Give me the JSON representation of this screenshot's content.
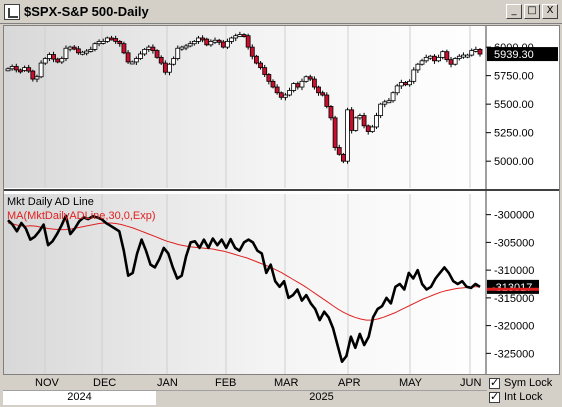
{
  "window": {
    "title": "$SPX-S&P 500-Daily",
    "controls": [
      "_",
      "□",
      "X"
    ]
  },
  "price_panel": {
    "last_price_label": "5939.30",
    "y_ticks": [
      "6000.00",
      "5750.00",
      "5500.00",
      "5250.00",
      "5000.00"
    ],
    "ymin": 4800,
    "ymax": 6150
  },
  "indicator_panel": {
    "title": "Mkt Daily AD Line",
    "ma_label": "MA(MktDailyADLine,30,0,Exp)",
    "last_value_label": "-313017",
    "y_ticks": [
      "-300000",
      "-305000",
      "-310000",
      "-315000",
      "-320000",
      "-325000"
    ],
    "ymin": -328000,
    "ymax": -297000
  },
  "x_axis": {
    "months": [
      "NOV",
      "DEC",
      "JAN",
      "FEB",
      "MAR",
      "APR",
      "MAY",
      "JUN"
    ],
    "years": [
      "2024",
      "2025"
    ]
  },
  "options": {
    "sym_lock": {
      "label": "Sym Lock",
      "checked": true
    },
    "int_lock": {
      "label": "Int Lock",
      "checked": true
    }
  },
  "colors": {
    "up_candle": "#ffffff",
    "down_candle": "#c8102e",
    "ad_line": "#000000",
    "ma_line": "#e02020",
    "price_label_bg": "#000000"
  },
  "chart_data": [
    {
      "type": "candlestick",
      "title": "$SPX-S&P 500-Daily",
      "ylim": [
        4800,
        6150
      ],
      "close_series": [
        5810,
        5830,
        5800,
        5795,
        5820,
        5790,
        5720,
        5740,
        5860,
        5900,
        5935,
        5895,
        5870,
        5900,
        5990,
        6000,
        5985,
        5950,
        5955,
        5965,
        5980,
        6030,
        6050,
        6050,
        6080,
        6075,
        6050,
        6030,
        5950,
        5870,
        5870,
        5900,
        5940,
        5980,
        6000,
        5970,
        5910,
        5860,
        5780,
        5850,
        5900,
        5990,
        6000,
        6010,
        6030,
        6050,
        6080,
        6070,
        6020,
        6050,
        6060,
        6045,
        6000,
        6050,
        6080,
        6100,
        6110,
        6100,
        6000,
        5920,
        5860,
        5820,
        5760,
        5700,
        5650,
        5600,
        5560,
        5580,
        5620,
        5680,
        5650,
        5700,
        5740,
        5720,
        5650,
        5600,
        5580,
        5480,
        5380,
        5120,
        5060,
        5000,
        5450,
        5270,
        5380,
        5400,
        5310,
        5260,
        5300,
        5400,
        5500,
        5520,
        5530,
        5600,
        5660,
        5690,
        5670,
        5700,
        5800,
        5850,
        5880,
        5910,
        5920,
        5880,
        5910,
        5960,
        5890,
        5850,
        5900,
        5920,
        5930,
        5930,
        5970,
        5980,
        5939
      ]
    },
    {
      "type": "line",
      "title": "Mkt Daily AD Line",
      "ylim": [
        -328000,
        -297000
      ],
      "series": [
        {
          "name": "Mkt Daily AD Line",
          "values": [
            -301000,
            -301800,
            -303000,
            -301500,
            -302500,
            -304500,
            -304000,
            -303000,
            -301800,
            -305500,
            -304800,
            -303500,
            -302000,
            -300200,
            -303500,
            -302500,
            -301200,
            -300500,
            -300800,
            -300300,
            -300500,
            -300800,
            -301500,
            -302000,
            -302500,
            -303000,
            -306500,
            -311000,
            -310500,
            -307000,
            -304500,
            -306500,
            -309000,
            -309500,
            -308000,
            -306000,
            -307000,
            -309500,
            -311500,
            -311000,
            -307500,
            -305000,
            -304800,
            -306000,
            -304500,
            -306000,
            -304300,
            -305500,
            -304500,
            -306000,
            -304400,
            -306000,
            -306500,
            -305000,
            -304500,
            -305000,
            -306500,
            -307000,
            -310500,
            -309000,
            -312000,
            -313000,
            -312000,
            -315000,
            -314500,
            -313500,
            -315500,
            -314500,
            -316000,
            -317000,
            -319000,
            -317500,
            -318500,
            -320500,
            -323500,
            -326500,
            -325500,
            -322000,
            -324000,
            -321500,
            -323500,
            -322000,
            -318500,
            -317000,
            -316500,
            -315000,
            -316000,
            -313000,
            -312500,
            -313500,
            -310500,
            -311500,
            -310000,
            -312500,
            -313500,
            -313000,
            -311500,
            -310500,
            -309500,
            -310500,
            -312000,
            -312500,
            -312000,
            -313000,
            -313200,
            -312500,
            -313017
          ]
        },
        {
          "name": "MA(MktDailyADLine,30,0,Exp)",
          "values": [
            -301500,
            -301700,
            -302000,
            -302100,
            -302000,
            -302100,
            -302300,
            -302500,
            -302600,
            -302700,
            -302700,
            -302600,
            -302400,
            -302200,
            -302000,
            -301800,
            -301600,
            -301500,
            -301500,
            -301600,
            -301800,
            -302100,
            -302400,
            -302800,
            -303200,
            -303600,
            -304000,
            -304400,
            -304800,
            -305100,
            -305400,
            -305600,
            -305800,
            -305900,
            -306000,
            -306100,
            -306200,
            -306400,
            -306600,
            -306900,
            -307200,
            -307500,
            -307800,
            -308200,
            -308600,
            -309000,
            -309400,
            -309900,
            -310400,
            -311000,
            -311600,
            -312200,
            -312800,
            -313500,
            -314200,
            -314900,
            -315600,
            -316300,
            -317000,
            -317600,
            -318100,
            -318500,
            -318800,
            -319000,
            -319000,
            -318800,
            -318500,
            -318100,
            -317700,
            -317200,
            -316700,
            -316200,
            -315700,
            -315200,
            -314800,
            -314400,
            -314000,
            -313700,
            -313500,
            -313300,
            -313200,
            -313100,
            -313000,
            -313000
          ]
        }
      ]
    }
  ]
}
